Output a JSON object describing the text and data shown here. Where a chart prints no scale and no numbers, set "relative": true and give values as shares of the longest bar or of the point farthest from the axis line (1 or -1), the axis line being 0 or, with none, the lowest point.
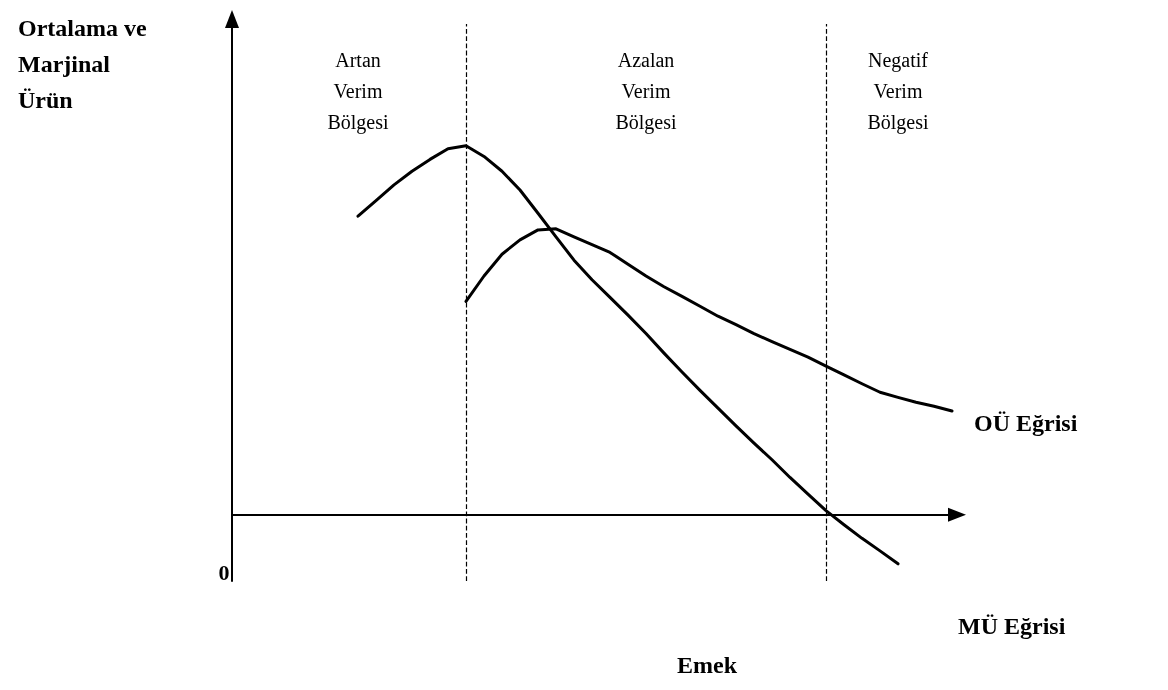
{
  "chart_data": {
    "type": "line",
    "relative": true,
    "ylabel": "Ortalama ve Marjinal Ürün",
    "xlabel": "Emek",
    "grid": false,
    "legend": false,
    "marker": "none",
    "line_style": "solid",
    "categories": [
      null,
      null,
      null,
      null,
      null,
      null,
      null,
      null,
      null,
      null,
      null,
      null,
      null,
      null,
      null,
      null,
      null,
      null,
      null,
      null,
      null,
      null,
      null,
      null,
      null,
      null,
      null,
      null,
      null,
      null,
      null,
      null,
      null,
      null,
      null,
      null,
      null,
      null,
      null,
      null,
      null
    ],
    "annotations": [
      "0",
      "Artan\nVerim\nBölgesi",
      "Azalan\nVerim\nBölgesi",
      "Negatif\nVerim\nBölgesi"
    ],
    "series": [
      {
        "name": "MÜ Eğrisi",
        "color": "#000000",
        "values": [
          null,
          null,
          null,
          null,
          null,
          null,
          null,
          0.809,
          0.851,
          0.894,
          0.931,
          0.963,
          0.992,
          1,
          0.971,
          0.931,
          0.88,
          0.817,
          0.753,
          0.69,
          0.637,
          0.589,
          0.541,
          0.491,
          0.438,
          0.387,
          0.337,
          0.289,
          0.241,
          0.194,
          0.149,
          0.101,
          0.056,
          0.011,
          -0.027,
          -0.064,
          -0.098,
          -0.133,
          null,
          null,
          null
        ]
      },
      {
        "name": "OÜ Eğrisi",
        "color": "#000000",
        "values": [
          null,
          null,
          null,
          null,
          null,
          null,
          null,
          null,
          null,
          null,
          null,
          null,
          null,
          0.578,
          0.647,
          0.706,
          0.745,
          0.772,
          0.775,
          0.753,
          0.732,
          0.711,
          0.679,
          0.647,
          0.618,
          0.592,
          0.565,
          0.538,
          0.515,
          0.491,
          0.469,
          0.448,
          0.427,
          0.403,
          0.379,
          0.355,
          0.332,
          0.318,
          0.305,
          0.294,
          0.281
        ]
      }
    ]
  }
}
